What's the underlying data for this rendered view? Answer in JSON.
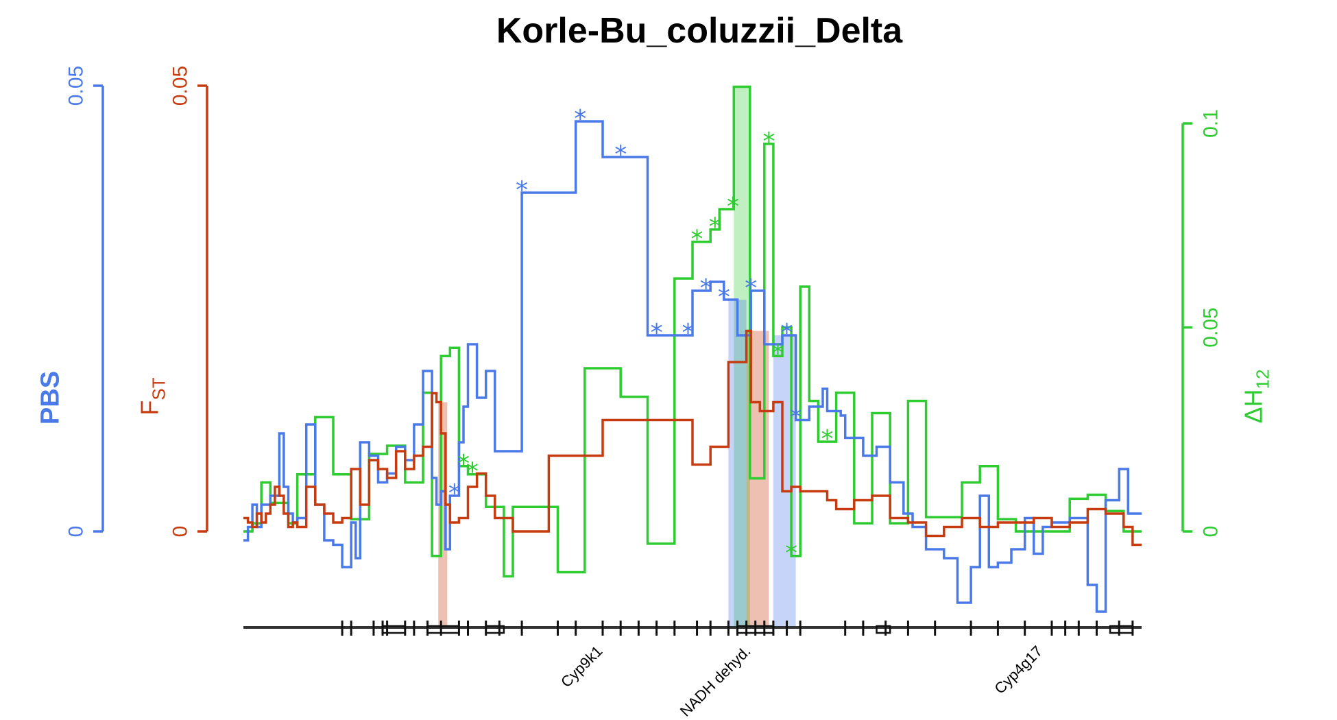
{
  "chart_data": {
    "type": "line",
    "title": "Korle-Bu_coluzzii_Delta",
    "colors": {
      "pbs": "#4a79e8",
      "fst": "#c63b0f",
      "h12": "#2ecc31",
      "axis": "#333333"
    },
    "axes": {
      "pbs": {
        "label": "PBS",
        "ticks": [
          "0",
          "0.05"
        ],
        "ylim": [
          0,
          0.05
        ]
      },
      "fst": {
        "label": "F",
        "label_sub": "ST",
        "ticks": [
          "0",
          "0.05"
        ],
        "ylim": [
          0,
          0.05
        ]
      },
      "h12": {
        "label": "ΔH",
        "label_sub": "12",
        "ticks": [
          "0",
          "0.05",
          "0.1"
        ],
        "ylim": [
          0,
          0.1
        ]
      }
    },
    "x_range": [
      0,
      100
    ],
    "genes": [
      {
        "name": "Cyp9k1",
        "x": 39
      },
      {
        "name": "NADH dehyd.",
        "x": 55.5
      },
      {
        "name": "Cyp4g17",
        "x": 88
      }
    ],
    "highlight_bands": [
      {
        "series": "fst",
        "x0": 21.7,
        "x1": 22.7
      },
      {
        "series": "h12",
        "x0": 54.6,
        "x1": 56.4
      },
      {
        "series": "pbs",
        "x0": 54.0,
        "x1": 56.0
      },
      {
        "series": "fst",
        "x0": 56.0,
        "x1": 58.5
      },
      {
        "series": "pbs",
        "x0": 59.0,
        "x1": 61.5
      }
    ],
    "series": [
      {
        "name": "PBS",
        "axis": "pbs",
        "x": [
          0,
          0.5,
          1,
          1.5,
          2,
          3,
          4,
          4.5,
          5,
          5.5,
          6,
          7,
          8,
          9,
          10,
          11,
          12,
          12.5,
          13,
          14,
          15,
          16,
          17,
          18,
          19,
          20,
          21,
          21.5,
          22,
          22.5,
          23,
          24,
          24.5,
          25,
          26,
          27,
          28,
          29,
          31,
          37,
          40,
          45,
          50,
          52,
          53.5,
          55,
          56.5,
          58,
          60,
          61.5,
          63,
          64.5,
          65,
          66.5,
          67,
          69,
          70.5,
          72,
          73.5,
          74.5,
          76,
          78,
          79.5,
          81,
          82,
          83,
          84,
          85.5,
          87,
          88,
          89,
          90,
          91,
          92,
          94,
          95,
          96,
          97.5,
          98.5,
          99.2
        ],
        "y": [
          -0.001,
          0.0005,
          0.003,
          0.0005,
          0.003,
          0.004,
          0.011,
          0.005,
          0.002,
          0.001,
          0.0015,
          0.012,
          0.003,
          -0.001,
          -0.0015,
          -0.004,
          0.001,
          -0.003,
          0.01,
          0.0085,
          0.0055,
          0.0065,
          0.0095,
          0.008,
          0.012,
          0.018,
          0.006,
          0.003,
          0.0045,
          -0.002,
          0.004,
          0.01,
          0.014,
          0.021,
          0.015,
          0.018,
          0.009,
          0.009,
          0.038,
          0.046,
          0.042,
          0.022,
          0.027,
          0.028,
          0.026,
          0.022,
          0.027,
          0.021,
          0.022,
          0.0125,
          0.014,
          0.016,
          0.0135,
          0.013,
          0.0105,
          0.0085,
          0.0095,
          0.0055,
          0.002,
          0.0005,
          -0.002,
          -0.003,
          -0.008,
          -0.004,
          0.004,
          -0.004,
          -0.0035,
          -0.002,
          0.0015,
          -0.0025,
          0.0005,
          0.001,
          0.001,
          0.0015,
          -0.006,
          -0.009,
          0.0035,
          0.007,
          0.002,
          0.002
        ]
      },
      {
        "name": "FST",
        "axis": "fst",
        "x": [
          0,
          0.5,
          1,
          1.5,
          2,
          2.5,
          3,
          3.5,
          4,
          4.5,
          5,
          5.5,
          6,
          7,
          8,
          9,
          10,
          11,
          12,
          13,
          14,
          15,
          16,
          17,
          18,
          19,
          20,
          21,
          21.5,
          22,
          22.5,
          23,
          24,
          25,
          26,
          27,
          28,
          30,
          34,
          40,
          45,
          50,
          52,
          54,
          56,
          56.5,
          57.5,
          59,
          60,
          61,
          62,
          63,
          64,
          65,
          66,
          68,
          70,
          72,
          74,
          76,
          78,
          80,
          82,
          84,
          86,
          88,
          90,
          92,
          94,
          96,
          98,
          99
        ],
        "y": [
          0.0015,
          0.001,
          0.0005,
          0.002,
          0.001,
          0.002,
          0.003,
          0.005,
          0.004,
          0.002,
          0.0005,
          0.001,
          0.0005,
          0.005,
          0.003,
          0.002,
          0.001,
          0.0015,
          0.007,
          0.003,
          0.008,
          0.007,
          0.006,
          0.009,
          0.007,
          0.0085,
          0.0095,
          0.0155,
          0.0145,
          0.011,
          0.003,
          0.001,
          0.0015,
          0.005,
          0.0065,
          0.004,
          0.0015,
          0.0,
          0.0085,
          0.0125,
          0.0125,
          0.0075,
          0.0095,
          0.019,
          0.0225,
          0.0145,
          0.0135,
          0.0145,
          0.0045,
          0.005,
          0.0045,
          0.0045,
          0.0045,
          0.0035,
          0.0025,
          0.0035,
          0.004,
          0.0015,
          0.001,
          -0.0005,
          0.0005,
          0.0015,
          0.0005,
          0.001,
          0.001,
          0.0015,
          0.0005,
          0.001,
          0.0025,
          0.002,
          0.0005,
          -0.0015
        ]
      },
      {
        "name": "ΔH12",
        "axis": "h12",
        "x": [
          0,
          1,
          2,
          3,
          5,
          6,
          8,
          10,
          12,
          14,
          16,
          18,
          20,
          21,
          22,
          23,
          24,
          25,
          27,
          29,
          30,
          32,
          35,
          38,
          42,
          45,
          48,
          50,
          51,
          52,
          53,
          54.6,
          56.4,
          58,
          59,
          60,
          61,
          62,
          63,
          64,
          66,
          68,
          70,
          72,
          74,
          76,
          78,
          80,
          82,
          84,
          86,
          88,
          90,
          92,
          94,
          96,
          98,
          99
        ],
        "y": [
          0.0,
          0.002,
          0.012,
          0.007,
          0.002,
          0.014,
          0.028,
          0.014,
          0.003,
          0.019,
          0.021,
          0.012,
          0.034,
          -0.006,
          0.043,
          0.045,
          0.016,
          0.014,
          0.006,
          -0.011,
          0.006,
          0.006,
          -0.01,
          0.04,
          0.033,
          -0.003,
          0.062,
          0.071,
          0.071,
          0.074,
          0.079,
          0.109,
          0.013,
          0.095,
          0.043,
          0.05,
          -0.006,
          0.06,
          0.032,
          0.022,
          0.034,
          0.002,
          0.029,
          0.002,
          0.032,
          0.0035,
          0.0035,
          0.012,
          0.016,
          0.003,
          0.0,
          0.0,
          0.0,
          0.008,
          0.009,
          0.005,
          0.0,
          0.0
        ]
      }
    ],
    "significant": {
      "pbs": [
        23.5,
        31,
        37.5,
        42,
        46,
        49.5,
        51.5,
        53.5,
        56.5,
        60.5,
        61.5
      ],
      "h12": [
        24.5,
        25.5,
        50.5,
        52.5,
        54.5,
        58.5,
        59.5,
        61,
        65
      ]
    }
  }
}
